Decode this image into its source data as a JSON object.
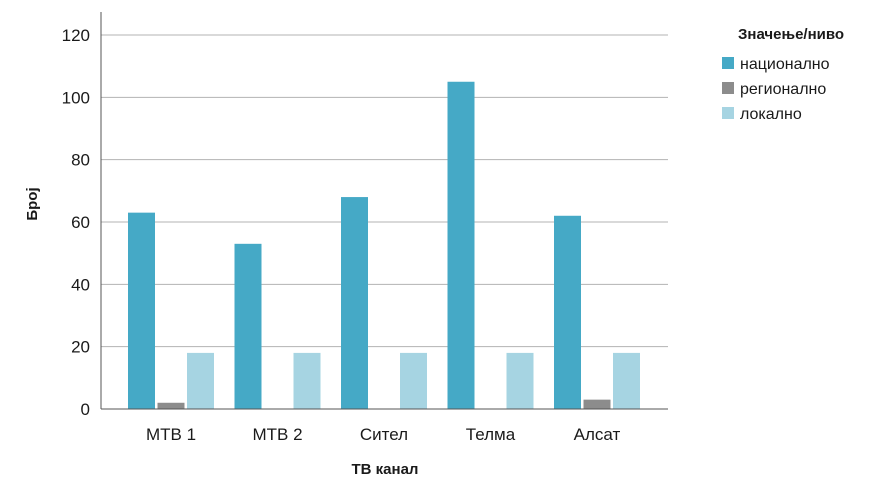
{
  "chart_data": {
    "type": "bar",
    "xlabel": "ТВ канал",
    "ylabel": "Број",
    "ylim": [
      0,
      120
    ],
    "yticks": [
      0,
      20,
      40,
      60,
      80,
      100,
      120
    ],
    "grid": true,
    "legend_title": "Значење/ниво",
    "legend_position": "top-right",
    "categories": [
      "МТВ 1",
      "МТВ 2",
      "Сител",
      "Телма",
      "Алсат"
    ],
    "series": [
      {
        "name": "национално",
        "color": "#45a9c6",
        "values": [
          63,
          53,
          68,
          105,
          62
        ]
      },
      {
        "name": "регионално",
        "color": "#8c8c8c",
        "values": [
          2,
          0,
          0,
          0,
          3
        ]
      },
      {
        "name": "локално",
        "color": "#a6d4e2",
        "values": [
          18,
          18,
          18,
          18,
          18
        ]
      }
    ]
  }
}
